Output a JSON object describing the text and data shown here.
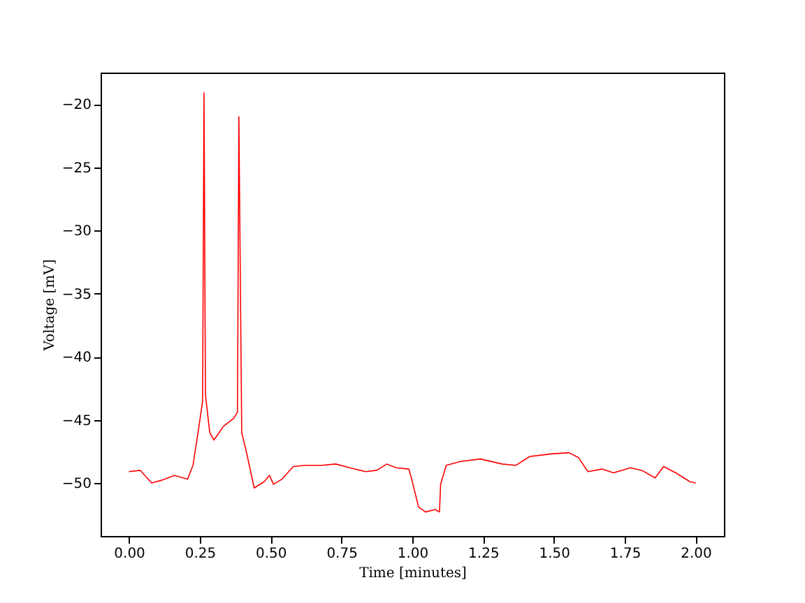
{
  "chart_data": {
    "type": "line",
    "xlabel": "Time [minutes]",
    "ylabel": "Voltage [mV]",
    "x": [
      0.0,
      0.04,
      0.08,
      0.113,
      0.16,
      0.207,
      0.226,
      0.246,
      0.26,
      0.265,
      0.27,
      0.285,
      0.3,
      0.334,
      0.369,
      0.383,
      0.388,
      0.398,
      0.418,
      0.442,
      0.477,
      0.496,
      0.51,
      0.54,
      0.58,
      0.62,
      0.68,
      0.73,
      0.78,
      0.835,
      0.875,
      0.91,
      0.943,
      0.988,
      0.998,
      1.022,
      1.047,
      1.081,
      1.096,
      1.1,
      1.12,
      1.17,
      1.24,
      1.317,
      1.366,
      1.415,
      1.49,
      1.553,
      1.587,
      1.62,
      1.67,
      1.71,
      1.77,
      1.81,
      1.857,
      1.887,
      1.93,
      1.98,
      2.0
    ],
    "series": [
      {
        "color": "#ff0000",
        "values": [
          -49.1,
          -49.0,
          -50.0,
          -49.8,
          -49.4,
          -49.7,
          -48.6,
          -45.7,
          -43.5,
          -19.1,
          -43.0,
          -46.0,
          -46.6,
          -45.5,
          -44.9,
          -44.4,
          -21.0,
          -46.0,
          -47.9,
          -50.4,
          -49.9,
          -49.4,
          -50.1,
          -49.7,
          -48.7,
          -48.6,
          -48.6,
          -48.5,
          -48.8,
          -49.1,
          -49.0,
          -48.5,
          -48.8,
          -48.9,
          -49.7,
          -51.9,
          -52.3,
          -52.1,
          -52.3,
          -50.1,
          -48.6,
          -48.3,
          -48.1,
          -48.5,
          -48.6,
          -47.9,
          -47.7,
          -47.6,
          -48.0,
          -49.1,
          -48.9,
          -49.2,
          -48.8,
          -49.0,
          -49.6,
          -48.7,
          -49.2,
          -49.9,
          -50.0
        ]
      }
    ],
    "xlim": [
      -0.1,
      2.1
    ],
    "ylim": [
      -54.2,
      -17.5
    ],
    "xticks": [
      {
        "value": 0,
        "label": "0.00"
      },
      {
        "value": 0.25,
        "label": "0.25"
      },
      {
        "value": 0.5,
        "label": "0.50"
      },
      {
        "value": 0.75,
        "label": "0.75"
      },
      {
        "value": 1,
        "label": "1.00"
      },
      {
        "value": 1.25,
        "label": "1.25"
      },
      {
        "value": 1.5,
        "label": "1.50"
      },
      {
        "value": 1.75,
        "label": "1.75"
      },
      {
        "value": 2,
        "label": "2.00"
      }
    ],
    "yticks": [
      -50,
      -45,
      -40,
      -35,
      -30,
      -25,
      -20
    ],
    "grid": false,
    "marker": "none",
    "line_style": "solid"
  }
}
